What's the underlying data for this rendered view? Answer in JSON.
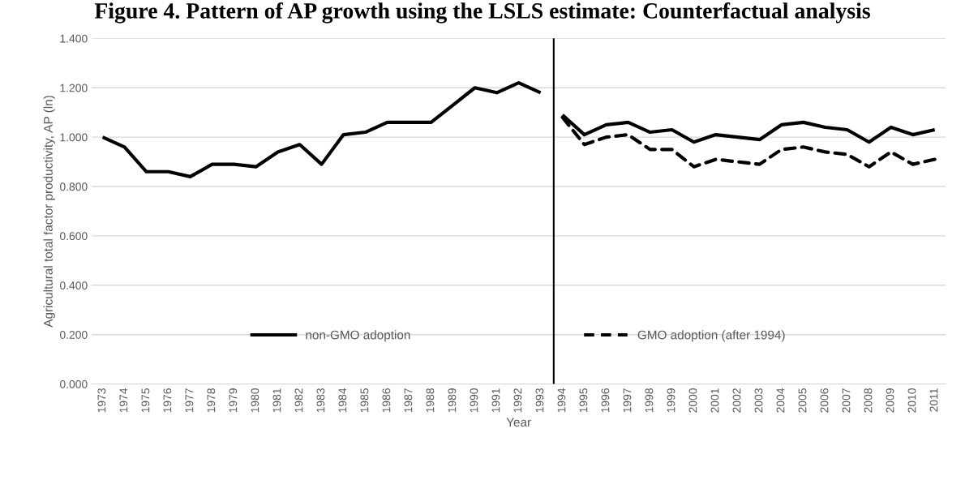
{
  "chart_data": {
    "type": "line",
    "title": "Figure 4. Pattern of AP growth using the LSLS estimate: Counterfactual analysis",
    "xlabel": "Year",
    "ylabel": "Agricultural total factor productivity, AP (ln)",
    "xlim": [
      1972.5,
      2011.5
    ],
    "xticks": [
      1973,
      1974,
      1975,
      1976,
      1977,
      1978,
      1979,
      1980,
      1981,
      1982,
      1983,
      1984,
      1985,
      1986,
      1987,
      1988,
      1989,
      1990,
      1991,
      1992,
      1993,
      1994,
      1995,
      1996,
      1997,
      1998,
      1999,
      2000,
      2001,
      2002,
      2003,
      2004,
      2005,
      2006,
      2007,
      2008,
      2009,
      2010,
      2011
    ],
    "ylim": [
      0,
      1.4
    ],
    "yticks": [
      {
        "value": 0,
        "label": "0.000"
      },
      {
        "value": 0.2,
        "label": "0.200"
      },
      {
        "value": 0.4,
        "label": "0.400"
      },
      {
        "value": 0.6,
        "label": "0.600"
      },
      {
        "value": 0.8,
        "label": "0.800"
      },
      {
        "value": 1.0,
        "label": "1.000"
      },
      {
        "value": 1.2,
        "label": "1.200"
      },
      {
        "value": 1.4,
        "label": "1.400"
      }
    ],
    "grid": "y",
    "legend": "bottom",
    "marker": "none",
    "series": [
      {
        "name": "non-GMO adoption",
        "color": "#000000",
        "line_style": "solid",
        "x": [
          1973,
          1974,
          1975,
          1976,
          1977,
          1978,
          1979,
          1980,
          1981,
          1982,
          1983,
          1984,
          1985,
          1986,
          1987,
          1988,
          1989,
          1990,
          1991,
          1992,
          1993
        ],
        "values": [
          1.0,
          0.96,
          0.86,
          0.86,
          0.84,
          0.89,
          0.89,
          0.88,
          0.94,
          0.97,
          0.89,
          1.01,
          1.02,
          1.06,
          1.06,
          1.06,
          1.13,
          1.2,
          1.18,
          1.22,
          1.18
        ]
      },
      {
        "name": "GMO adoption (after 1994)",
        "color": "#000000",
        "line_style": "dashed",
        "x": [
          1994,
          1995,
          1996,
          1997,
          1998,
          1999,
          2000,
          2001,
          2002,
          2003,
          2004,
          2005,
          2006,
          2007,
          2008,
          2009,
          2010,
          2011
        ],
        "values": [
          1.08,
          0.97,
          1.0,
          1.01,
          0.95,
          0.95,
          0.88,
          0.91,
          0.9,
          0.89,
          0.95,
          0.96,
          0.94,
          0.93,
          0.88,
          0.94,
          0.89,
          0.91
        ]
      },
      {
        "color": "#000000",
        "line_style": "solid",
        "x": [
          1994,
          1995,
          1996,
          1997,
          1998,
          1999,
          2000,
          2001,
          2002,
          2003,
          2004,
          2005,
          2006,
          2007,
          2008,
          2009,
          2010,
          2011
        ],
        "values": [
          1.09,
          1.01,
          1.05,
          1.06,
          1.02,
          1.03,
          0.98,
          1.01,
          1.0,
          0.99,
          1.05,
          1.06,
          1.04,
          1.03,
          0.98,
          1.04,
          1.01,
          1.03
        ]
      }
    ],
    "ref_lines": [
      {
        "axis": "x",
        "value": 1993.6,
        "color": "#000000",
        "line_style": "solid"
      }
    ]
  }
}
